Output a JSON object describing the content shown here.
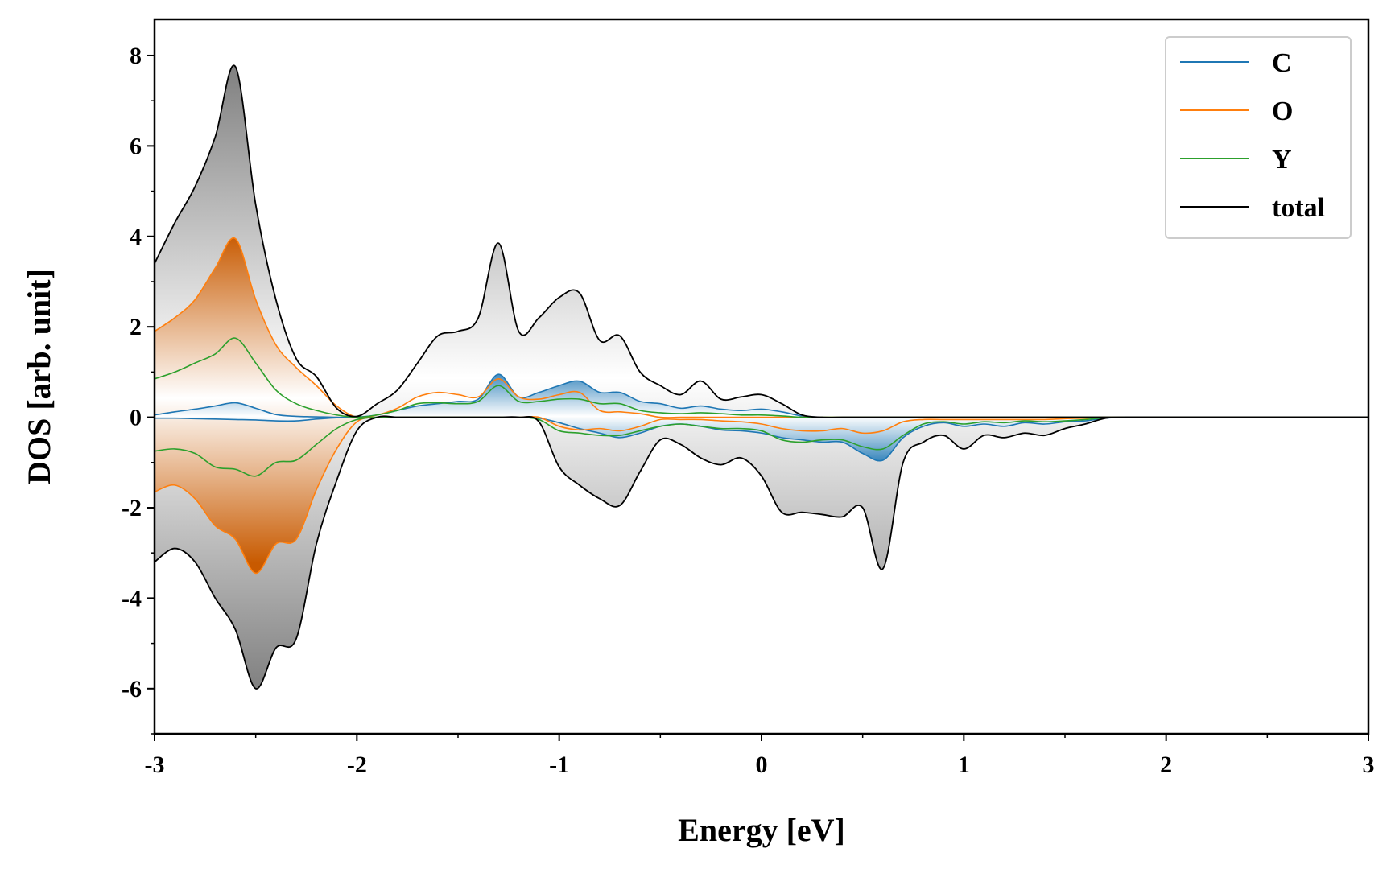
{
  "chart_data": {
    "type": "area",
    "xlabel": "Energy [eV]",
    "ylabel": "DOS [arb. unit]",
    "xlim": [
      -3,
      3
    ],
    "ylim": [
      -7,
      8.8
    ],
    "xticks": [
      -3,
      -2,
      -1,
      0,
      1,
      2,
      3
    ],
    "yticks": [
      -6,
      -4,
      -2,
      0,
      2,
      4,
      6,
      8
    ],
    "legend_position": "top-right",
    "grid": false,
    "x": [
      -3.0,
      -2.9,
      -2.8,
      -2.7,
      -2.6,
      -2.5,
      -2.4,
      -2.3,
      -2.2,
      -2.1,
      -2.0,
      -1.9,
      -1.8,
      -1.7,
      -1.6,
      -1.5,
      -1.4,
      -1.3,
      -1.2,
      -1.1,
      -1.0,
      -0.9,
      -0.8,
      -0.7,
      -0.6,
      -0.5,
      -0.4,
      -0.3,
      -0.2,
      -0.1,
      0.0,
      0.1,
      0.2,
      0.3,
      0.4,
      0.5,
      0.6,
      0.7,
      0.8,
      0.9,
      1.0,
      1.1,
      1.2,
      1.3,
      1.4,
      1.5,
      1.6,
      1.7,
      1.8,
      1.9,
      2.0,
      2.1,
      2.2,
      2.3,
      2.4,
      2.5,
      2.6,
      2.7,
      2.8,
      2.9,
      3.0
    ],
    "series": [
      {
        "name": "C",
        "color": "#1f77b4",
        "up": [
          0.05,
          0.12,
          0.18,
          0.25,
          0.32,
          0.2,
          0.06,
          0.02,
          0.01,
          0.0,
          0.0,
          0.05,
          0.15,
          0.25,
          0.3,
          0.35,
          0.4,
          0.95,
          0.45,
          0.55,
          0.7,
          0.8,
          0.55,
          0.55,
          0.35,
          0.3,
          0.2,
          0.25,
          0.18,
          0.15,
          0.18,
          0.12,
          0.03,
          0.0,
          0.0,
          0.0,
          0.0,
          0.0,
          0.0,
          0.0,
          0.0,
          0.0,
          0.0,
          0.0,
          0.0,
          0.0,
          0.0,
          0.0,
          0.0,
          0.0,
          0.0,
          0.0,
          0.0,
          0.0,
          0.0,
          0.0,
          0.0,
          0.0,
          0.0,
          0.0,
          0.0
        ],
        "down": [
          -0.02,
          -0.02,
          -0.03,
          -0.04,
          -0.05,
          -0.06,
          -0.08,
          -0.08,
          -0.04,
          -0.01,
          0.0,
          0.0,
          0.0,
          0.0,
          0.0,
          0.0,
          0.0,
          0.0,
          0.0,
          -0.02,
          -0.12,
          -0.25,
          -0.35,
          -0.45,
          -0.35,
          -0.2,
          -0.15,
          -0.2,
          -0.28,
          -0.3,
          -0.35,
          -0.45,
          -0.5,
          -0.55,
          -0.55,
          -0.8,
          -0.95,
          -0.45,
          -0.2,
          -0.12,
          -0.2,
          -0.15,
          -0.2,
          -0.12,
          -0.15,
          -0.1,
          -0.08,
          -0.02,
          0.0,
          0.0,
          0.0,
          0.0,
          0.0,
          0.0,
          0.0,
          0.0,
          0.0,
          0.0,
          0.0,
          0.0,
          0.0
        ]
      },
      {
        "name": "O",
        "color": "#ff7f0e",
        "up": [
          1.9,
          2.2,
          2.6,
          3.3,
          3.95,
          2.6,
          1.6,
          1.1,
          0.7,
          0.25,
          0.0,
          0.05,
          0.2,
          0.45,
          0.55,
          0.5,
          0.45,
          0.85,
          0.45,
          0.4,
          0.5,
          0.55,
          0.15,
          0.12,
          0.08,
          0.0,
          0.0,
          0.0,
          0.0,
          0.0,
          0.0,
          0.0,
          0.0,
          0.0,
          0.0,
          0.0,
          0.0,
          0.0,
          0.0,
          0.0,
          0.0,
          0.0,
          0.0,
          0.0,
          0.0,
          0.0,
          0.0,
          0.0,
          0.0,
          0.0,
          0.0,
          0.0,
          0.0,
          0.0,
          0.0,
          0.0,
          0.0,
          0.0,
          0.0,
          0.0,
          0.0
        ],
        "down": [
          -1.65,
          -1.5,
          -1.8,
          -2.4,
          -2.7,
          -3.45,
          -2.8,
          -2.7,
          -1.6,
          -0.7,
          -0.1,
          0.0,
          0.0,
          0.0,
          0.0,
          0.0,
          0.0,
          0.0,
          0.0,
          0.0,
          -0.2,
          -0.28,
          -0.25,
          -0.3,
          -0.2,
          -0.05,
          -0.05,
          -0.05,
          -0.08,
          -0.1,
          -0.15,
          -0.25,
          -0.3,
          -0.3,
          -0.25,
          -0.35,
          -0.3,
          -0.1,
          -0.05,
          -0.05,
          -0.05,
          -0.05,
          -0.05,
          -0.05,
          -0.05,
          -0.03,
          -0.02,
          0.0,
          0.0,
          0.0,
          0.0,
          0.0,
          0.0,
          0.0,
          0.0,
          0.0,
          0.0,
          0.0,
          0.0,
          0.0,
          0.0
        ]
      },
      {
        "name": "Y",
        "color": "#2ca02c",
        "up": [
          0.85,
          1.0,
          1.2,
          1.4,
          1.75,
          1.2,
          0.6,
          0.3,
          0.15,
          0.05,
          0.0,
          0.05,
          0.15,
          0.3,
          0.32,
          0.3,
          0.35,
          0.7,
          0.35,
          0.35,
          0.4,
          0.4,
          0.3,
          0.3,
          0.15,
          0.1,
          0.08,
          0.1,
          0.08,
          0.05,
          0.05,
          0.03,
          0.0,
          0.0,
          0.0,
          0.0,
          0.0,
          0.0,
          0.0,
          0.0,
          0.0,
          0.0,
          0.0,
          0.0,
          0.0,
          0.0,
          0.0,
          0.0,
          0.0,
          0.0,
          0.0,
          0.0,
          0.0,
          0.0,
          0.0,
          0.0,
          0.0,
          0.0,
          0.0,
          0.0,
          0.0
        ],
        "down": [
          -0.75,
          -0.7,
          -0.8,
          -1.1,
          -1.15,
          -1.3,
          -1.0,
          -0.95,
          -0.6,
          -0.25,
          -0.05,
          0.0,
          0.0,
          0.0,
          0.0,
          0.0,
          0.0,
          0.0,
          0.0,
          -0.05,
          -0.3,
          -0.35,
          -0.4,
          -0.4,
          -0.3,
          -0.2,
          -0.15,
          -0.2,
          -0.25,
          -0.25,
          -0.3,
          -0.5,
          -0.55,
          -0.5,
          -0.5,
          -0.65,
          -0.7,
          -0.4,
          -0.15,
          -0.1,
          -0.15,
          -0.1,
          -0.12,
          -0.08,
          -0.1,
          -0.08,
          -0.05,
          -0.01,
          0.0,
          0.0,
          0.0,
          0.0,
          0.0,
          0.0,
          0.0,
          0.0,
          0.0,
          0.0,
          0.0,
          0.0,
          0.0
        ]
      },
      {
        "name": "total",
        "color": "#000000",
        "up": [
          3.4,
          4.3,
          5.1,
          6.2,
          7.75,
          4.7,
          2.6,
          1.3,
          0.9,
          0.2,
          0.02,
          0.3,
          0.6,
          1.2,
          1.8,
          1.9,
          2.2,
          3.85,
          1.9,
          2.2,
          2.65,
          2.75,
          1.7,
          1.8,
          1.0,
          0.7,
          0.5,
          0.8,
          0.4,
          0.45,
          0.5,
          0.3,
          0.05,
          0.0,
          0.0,
          0.0,
          0.0,
          0.0,
          0.0,
          0.0,
          0.0,
          0.0,
          0.0,
          0.0,
          0.0,
          0.0,
          0.0,
          0.0,
          0.0,
          0.0,
          0.0,
          0.0,
          0.0,
          0.0,
          0.0,
          0.0,
          0.0,
          0.0,
          0.0,
          0.0,
          0.0
        ],
        "down": [
          -3.2,
          -2.9,
          -3.2,
          -4.0,
          -4.7,
          -6.0,
          -5.1,
          -4.9,
          -2.8,
          -1.4,
          -0.3,
          0.0,
          0.0,
          0.0,
          0.0,
          0.0,
          0.0,
          0.0,
          0.0,
          -0.1,
          -1.1,
          -1.5,
          -1.8,
          -1.95,
          -1.2,
          -0.5,
          -0.6,
          -0.9,
          -1.05,
          -0.9,
          -1.3,
          -2.1,
          -2.1,
          -2.15,
          -2.2,
          -2.0,
          -3.35,
          -1.0,
          -0.55,
          -0.4,
          -0.7,
          -0.4,
          -0.45,
          -0.35,
          -0.4,
          -0.25,
          -0.15,
          -0.02,
          0.0,
          0.0,
          0.0,
          0.0,
          0.0,
          0.0,
          0.0,
          0.0,
          0.0,
          0.0,
          0.0,
          0.0,
          0.0
        ]
      }
    ]
  }
}
